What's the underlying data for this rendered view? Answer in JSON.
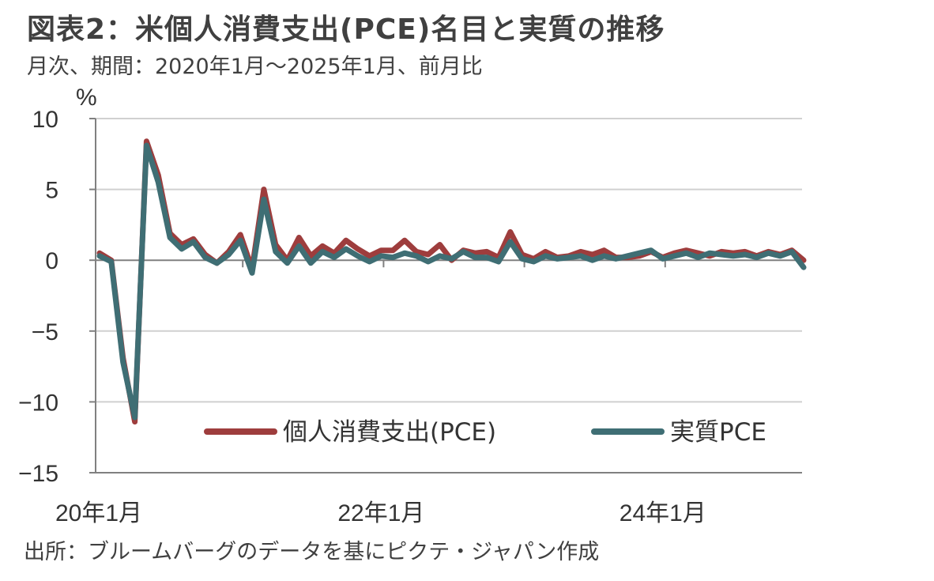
{
  "title": "図表2：米個人消費支出(PCE)名目と実質の推移",
  "subtitle": "月次、期間：2020年1月～2025年1月、前月比",
  "source": "出所：ブルームバーグのデータを基にピクテ・ジャパン作成",
  "colors": {
    "nominal": "#9e3d3d",
    "real": "#3f6e74",
    "grid": "#d0d0d0",
    "axis": "#808080"
  },
  "chart_data": {
    "type": "line",
    "ylabel": "%",
    "ylim": [
      -15,
      10
    ],
    "yticks": [
      10,
      5,
      0,
      -5,
      -10,
      -15
    ],
    "ytick_labels": [
      "10",
      "5",
      "0",
      "−5",
      "−10",
      "−15"
    ],
    "grid": true,
    "legend_position": "bottom-right",
    "x_start": "2020-01",
    "x_end": "2025-01",
    "xtick_labels": [
      {
        "month_index": 0,
        "label": "20年1月"
      },
      {
        "month_index": 24,
        "label": "22年1月"
      },
      {
        "month_index": 48,
        "label": "24年1月"
      }
    ],
    "series": [
      {
        "name": "個人消費支出(PCE)",
        "color": "#9e3d3d",
        "values": [
          0.5,
          0.0,
          -6.9,
          -11.4,
          8.4,
          6.0,
          1.9,
          1.1,
          1.5,
          0.4,
          -0.2,
          0.6,
          1.8,
          -0.6,
          5.0,
          1.1,
          0.0,
          1.6,
          0.3,
          1.0,
          0.5,
          1.4,
          0.8,
          0.3,
          0.7,
          0.7,
          1.4,
          0.6,
          0.4,
          1.1,
          0.0,
          0.7,
          0.5,
          0.6,
          0.2,
          2.0,
          0.4,
          0.1,
          0.6,
          0.2,
          0.3,
          0.6,
          0.4,
          0.7,
          0.2,
          0.2,
          0.3,
          0.6,
          0.2,
          0.5,
          0.7,
          0.5,
          0.3,
          0.6,
          0.5,
          0.6,
          0.3,
          0.6,
          0.4,
          0.7,
          0.0
        ]
      },
      {
        "name": "実質PCE",
        "color": "#3f6e74",
        "values": [
          0.3,
          -0.1,
          -7.2,
          -11.1,
          8.1,
          5.5,
          1.6,
          0.8,
          1.3,
          0.2,
          -0.2,
          0.4,
          1.4,
          -0.9,
          4.3,
          0.6,
          -0.2,
          1.0,
          -0.2,
          0.6,
          0.2,
          0.8,
          0.3,
          -0.1,
          0.3,
          0.2,
          0.5,
          0.3,
          -0.1,
          0.3,
          0.1,
          0.6,
          0.2,
          0.2,
          -0.1,
          1.3,
          0.1,
          -0.1,
          0.3,
          0.1,
          0.2,
          0.3,
          0.0,
          0.3,
          0.1,
          0.3,
          0.5,
          0.7,
          0.1,
          0.3,
          0.5,
          0.2,
          0.5,
          0.4,
          0.3,
          0.4,
          0.2,
          0.5,
          0.3,
          0.6,
          -0.5
        ]
      }
    ]
  }
}
